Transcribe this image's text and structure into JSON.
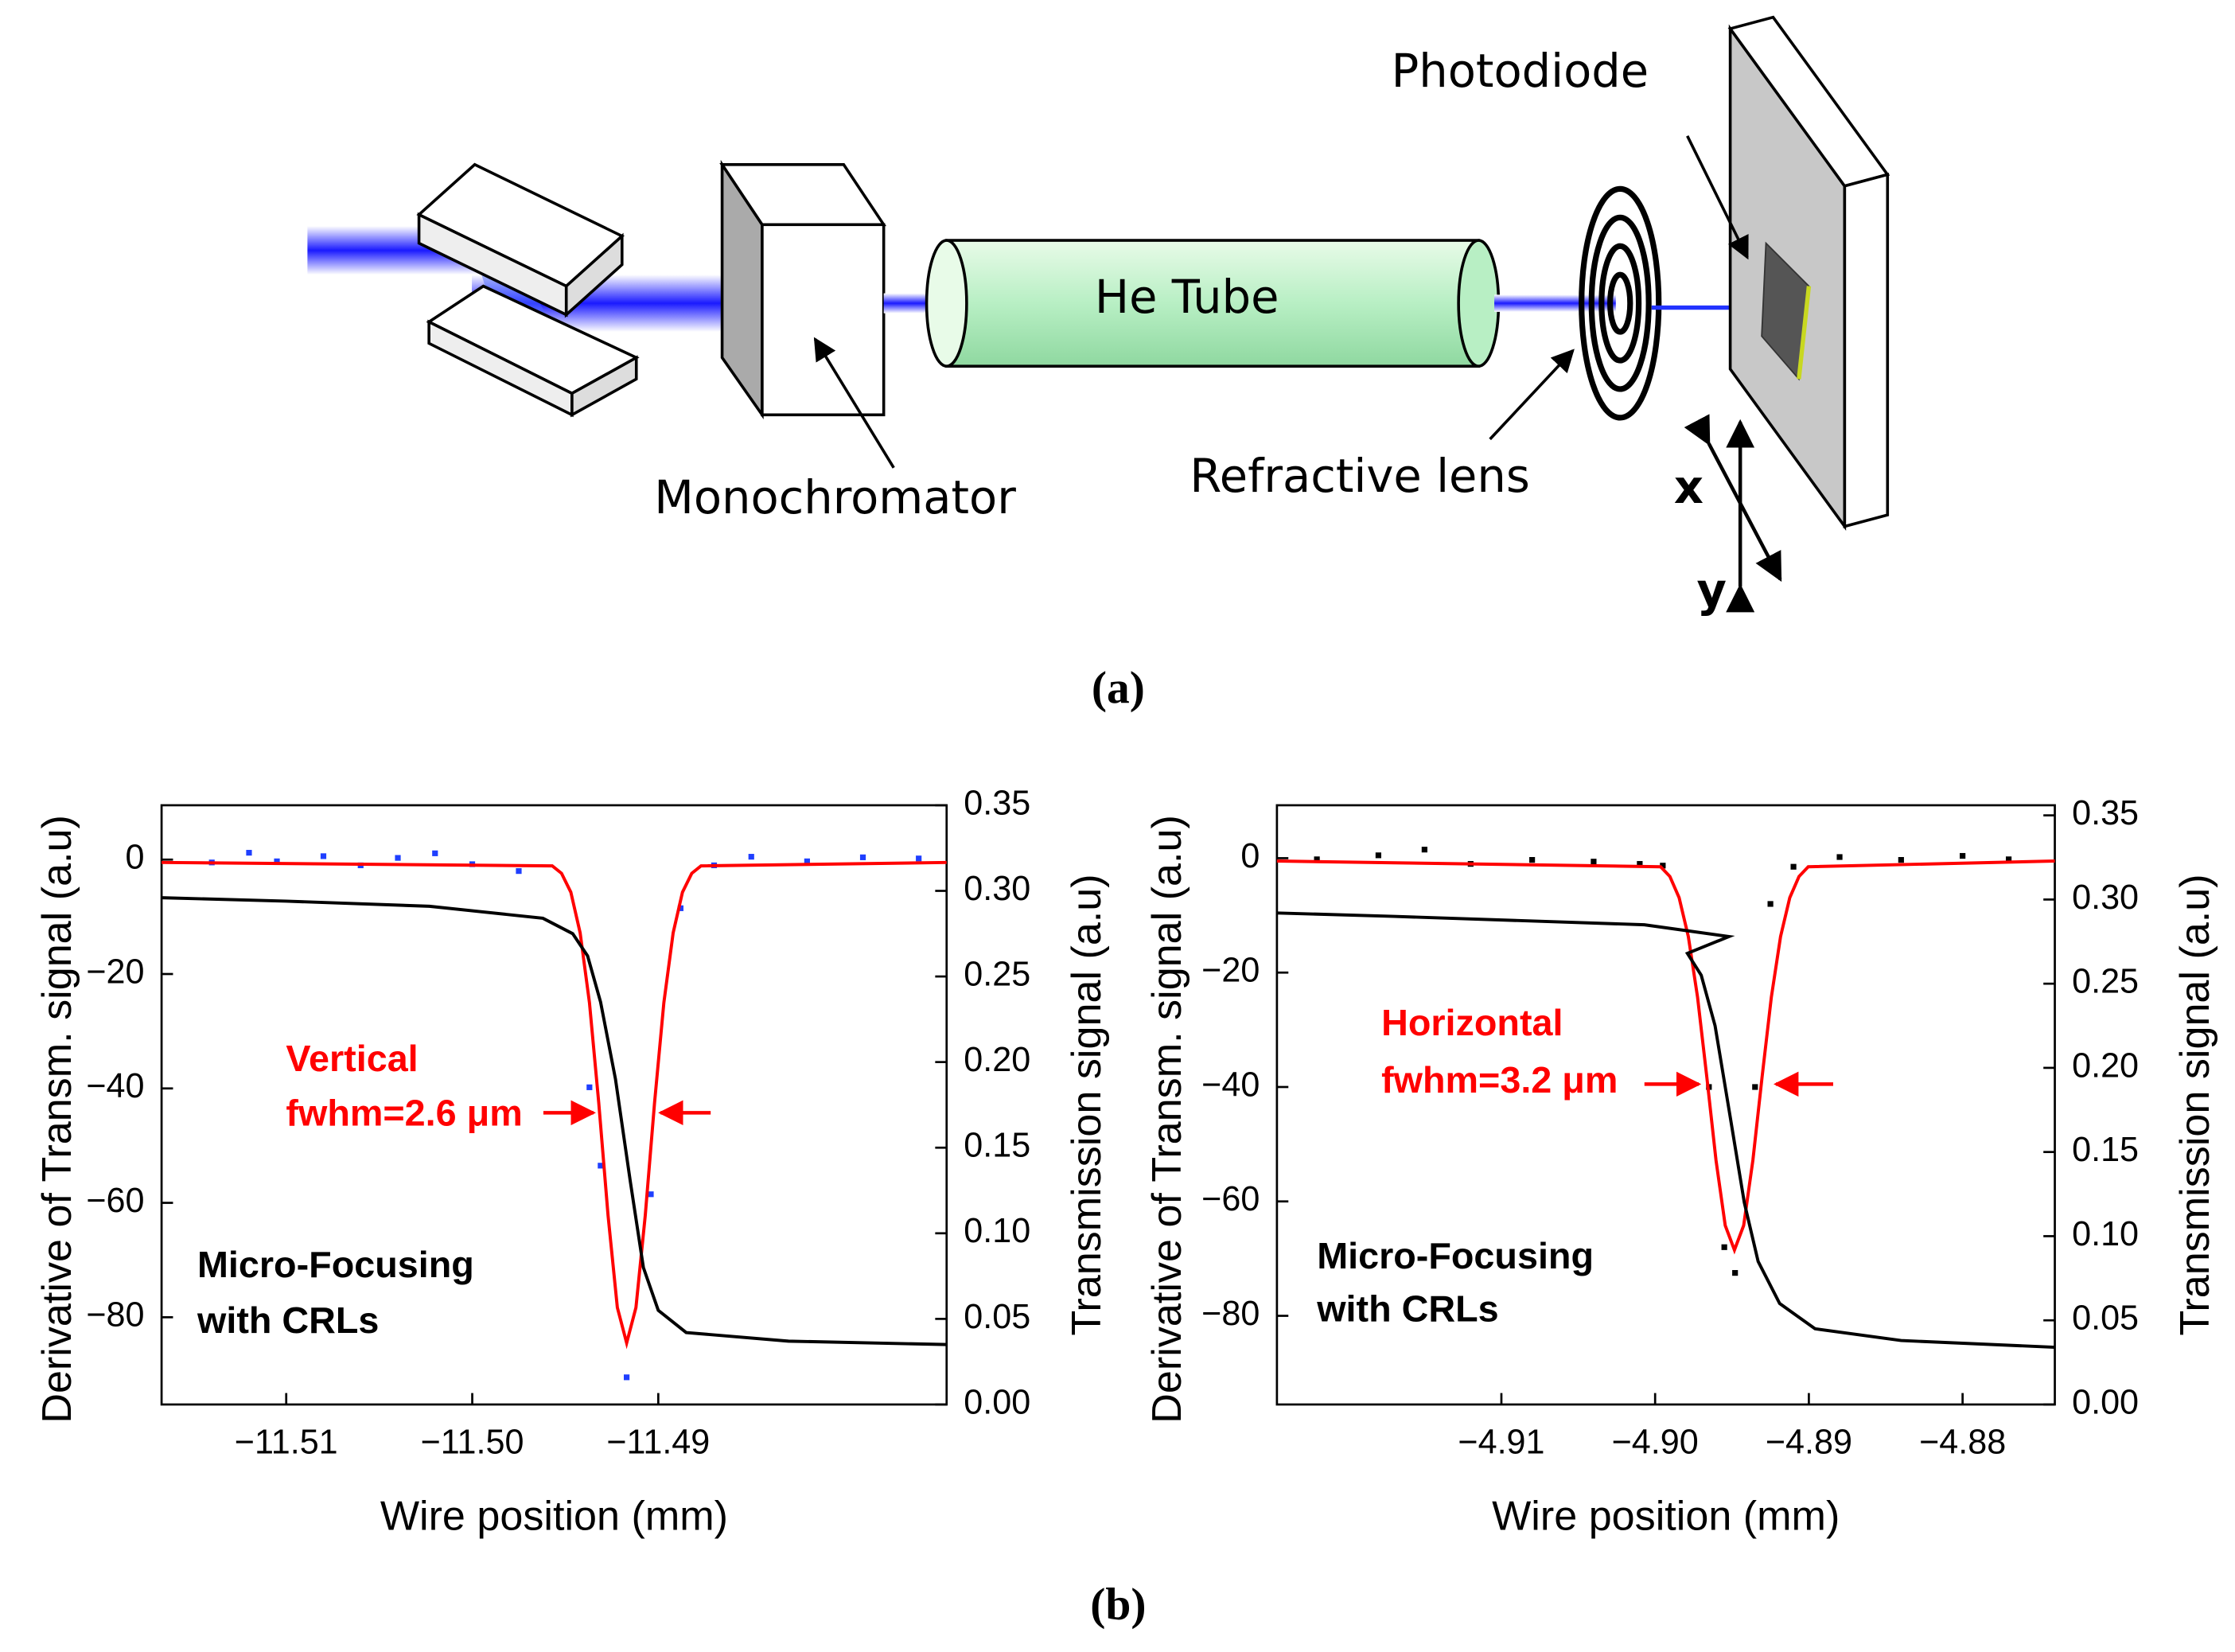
{
  "diagram": {
    "photodiode": "Photodiode",
    "tube": "He Tube",
    "monochromator": "Monochromator",
    "lens": "Refractive lens",
    "x_axis": "x",
    "y_axis": "y",
    "caption": "(a)"
  },
  "caption_b": "(b)",
  "chart_data": [
    {
      "type": "line",
      "xlabel": "Wire position (mm)",
      "ylabel": "Derivative of Transm. signal (a.u)",
      "y2label": "Transmission signal (a.u)",
      "annotations": [
        "Vertical",
        "fwhm=2.6 μm",
        "Micro-Focusing",
        "with CRLs"
      ],
      "xlim": [
        -11.5167,
        -11.4745
      ],
      "ylim": [
        -95.25,
        9.5
      ],
      "y2lim": [
        0,
        0.35
      ],
      "xticks": [
        {
          "value": -11.51,
          "label": "−11.51"
        },
        {
          "value": -11.5,
          "label": "−11.50"
        },
        {
          "value": -11.49,
          "label": "−11.49"
        }
      ],
      "yticks": [
        0,
        {
          "value": -20,
          "label": "−20"
        },
        {
          "value": -40,
          "label": "−40"
        },
        {
          "value": -60,
          "label": "−60"
        },
        {
          "value": -80,
          "label": "−80"
        }
      ],
      "y2ticks": [
        {
          "value": 0,
          "label": "0.00"
        },
        0.05,
        {
          "value": 0.1,
          "label": "0.10"
        },
        0.15,
        {
          "value": 0.2,
          "label": "0.20"
        },
        0.25,
        {
          "value": 0.3,
          "label": "0.30"
        },
        0.35
      ],
      "series": [
        {
          "style": "scatter",
          "color": "#1f3fff",
          "x": [
            -11.514,
            -11.512,
            -11.5105,
            -11.508,
            -11.506,
            -11.504,
            -11.502,
            -11.5,
            -11.4975,
            -11.4937,
            -11.4931,
            -11.4917,
            -11.4904,
            -11.4888,
            -11.487,
            -11.485,
            -11.482,
            -11.479,
            -11.476
          ],
          "values": [
            -0.5,
            1.2,
            -0.3,
            0.6,
            -1,
            0.3,
            1.1,
            -0.8,
            -2,
            -39.8,
            -53.5,
            -90.5,
            -58.5,
            -8.5,
            -1,
            0.5,
            -0.3,
            0.4,
            0.2
          ]
        },
        {
          "style": "line",
          "color": "#ff0000",
          "x": [
            -11.5167,
            -11.4957,
            -11.4952,
            -11.4947,
            -11.4942,
            -11.4937,
            -11.4932,
            -11.4927,
            -11.4922,
            -11.4917,
            -11.4912,
            -11.4907,
            -11.4902,
            -11.4897,
            -11.4892,
            -11.4887,
            -11.4882,
            -11.4877,
            -11.4745
          ],
          "values": [
            -0.5,
            -1.1,
            -2.4,
            -5.7,
            -12.8,
            -25,
            -42.5,
            -62.2,
            -78.3,
            -84.5,
            -78.3,
            -62.2,
            -42.5,
            -25,
            -12.8,
            -5.7,
            -2.4,
            -1.1,
            -0.5
          ]
        },
        {
          "style": "line",
          "color": "#000000",
          "axis": "y2",
          "x": [
            -11.5167,
            -11.51,
            -11.5023,
            -11.4962,
            -11.4946,
            -11.4938,
            -11.4931,
            -11.4923,
            -11.4915,
            -11.4908,
            -11.49,
            -11.4885,
            -11.483,
            -11.4745
          ],
          "values": [
            0.296,
            0.294,
            0.291,
            0.284,
            0.275,
            0.262,
            0.235,
            0.19,
            0.13,
            0.08,
            0.055,
            0.042,
            0.037,
            0.035
          ]
        }
      ]
    },
    {
      "type": "line",
      "xlabel": "Wire position (mm)",
      "ylabel": "Derivative of Transm. signal (a.u)",
      "y2label": "Transmission signal (a.u)",
      "annotations": [
        "Horizontal",
        "fwhm=3.2 μm",
        "Micro-Focusing",
        "with CRLs"
      ],
      "xlim": [
        -4.9246,
        -4.874
      ],
      "ylim": [
        -95.5,
        9.25
      ],
      "y2lim": [
        0,
        0.356
      ],
      "xticks": [
        {
          "value": -4.91,
          "label": "−4.91"
        },
        {
          "value": -4.9,
          "label": "−4.90"
        },
        {
          "value": -4.89,
          "label": "−4.89"
        },
        {
          "value": -4.88,
          "label": "−4.88"
        }
      ],
      "yticks": [
        0,
        {
          "value": -20,
          "label": "−20"
        },
        {
          "value": -40,
          "label": "−40"
        },
        {
          "value": -60,
          "label": "−60"
        },
        {
          "value": -80,
          "label": "−80"
        }
      ],
      "y2ticks": [
        {
          "value": 0,
          "label": "0.00"
        },
        0.05,
        {
          "value": 0.1,
          "label": "0.10"
        },
        0.15,
        {
          "value": 0.2,
          "label": "0.20"
        },
        0.25,
        {
          "value": 0.3,
          "label": "0.30"
        },
        0.35
      ],
      "series": [
        {
          "style": "scatter",
          "color": "#000000",
          "x": [
            -4.922,
            -4.918,
            -4.915,
            -4.912,
            -4.908,
            -4.904,
            -4.901,
            -4.8995,
            -4.8965,
            -4.8955,
            -4.8948,
            -4.8935,
            -4.8925,
            -4.891,
            -4.888,
            -4.884,
            -4.88,
            -4.877
          ],
          "values": [
            -0.2,
            0.5,
            1.5,
            -1,
            -0.3,
            -0.6,
            -1,
            -1.3,
            -40,
            -68,
            -72.5,
            -40,
            -8,
            -1.5,
            0.2,
            -0.3,
            0.4,
            -0.2
          ]
        },
        {
          "style": "line",
          "color": "#ff0000",
          "x": [
            -4.9246,
            -4.89964,
            -4.89904,
            -4.89844,
            -4.89784,
            -4.89724,
            -4.89664,
            -4.89604,
            -4.89544,
            -4.89484,
            -4.89424,
            -4.89364,
            -4.89304,
            -4.89244,
            -4.89184,
            -4.89124,
            -4.89064,
            -4.89004,
            -4.874
          ],
          "values": [
            -0.5,
            -1.5,
            -3.2,
            -6.9,
            -13.7,
            -24.3,
            -38.2,
            -52.8,
            -64.2,
            -68.5,
            -64.2,
            -52.8,
            -38.2,
            -24.3,
            -13.7,
            -6.9,
            -3.2,
            -1.5,
            -0.5
          ]
        },
        {
          "style": "line",
          "color": "#000000",
          "axis": "y2",
          "x": [
            -4.9246,
            -4.917,
            -4.9007,
            -4.8952,
            -4.8979,
            -4.897,
            -4.8961,
            -4.8951,
            -4.8942,
            -4.8933,
            -4.8919,
            -4.8896,
            -4.884,
            -4.874
          ],
          "values": [
            0.292,
            0.29,
            0.285,
            0.278,
            0.268,
            0.255,
            0.225,
            0.17,
            0.12,
            0.085,
            0.06,
            0.045,
            0.038,
            0.034
          ]
        }
      ]
    }
  ]
}
